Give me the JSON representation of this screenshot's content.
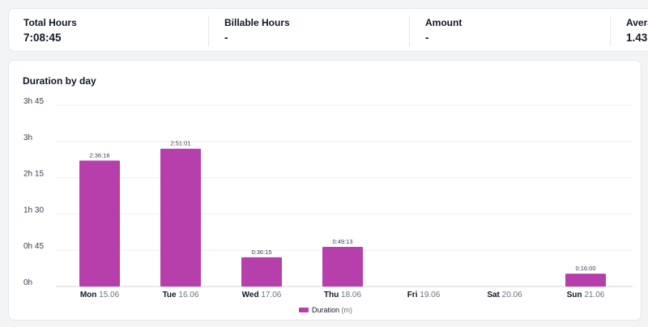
{
  "stats": [
    {
      "label": "Total Hours",
      "value": "7:08:45"
    },
    {
      "label": "Billable Hours",
      "value": "-"
    },
    {
      "label": "Amount",
      "value": "-"
    },
    {
      "label": "Avera",
      "value": "1.43"
    }
  ],
  "chart": {
    "title": "Duration by day"
  },
  "colors": {
    "bar": "#b63fab",
    "grid": "#eef0f3",
    "axis": "#d1d5db"
  },
  "chart_data": {
    "type": "bar",
    "title": "Duration by day",
    "categories": [
      {
        "day": "Mon",
        "date": "15.06"
      },
      {
        "day": "Tue",
        "date": "16.06"
      },
      {
        "day": "Wed",
        "date": "17.06"
      },
      {
        "day": "Thu",
        "date": "18.06"
      },
      {
        "day": "Fri",
        "date": "19.06"
      },
      {
        "day": "Sat",
        "date": "20.06"
      },
      {
        "day": "Sun",
        "date": "21.06"
      }
    ],
    "values_minutes": [
      156.27,
      171.02,
      36.25,
      49.22,
      0,
      0,
      16.0
    ],
    "data_labels": [
      "2:36:16",
      "2:51:01",
      "0:36:15",
      "0:49:13",
      "",
      "",
      "0:16:00"
    ],
    "y_ticks": [
      "0h",
      "0h 45",
      "1h 30",
      "2h 15",
      "3h",
      "3h 45"
    ],
    "y_tick_values_minutes": [
      0,
      45,
      90,
      135,
      180,
      225
    ],
    "ylim_minutes": [
      0,
      225
    ],
    "grid": true,
    "legend": {
      "position": "bottom-center",
      "label": "Duration",
      "unit": "(m)"
    }
  }
}
